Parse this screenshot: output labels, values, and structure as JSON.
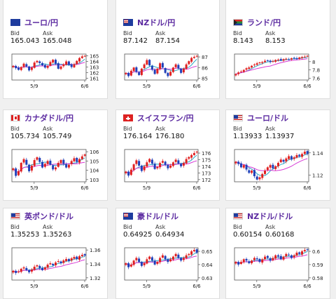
{
  "colors": {
    "title": "#5b2aa0",
    "up": "#e02020",
    "down": "#1f3fb8",
    "ma1": "#2fa7c4",
    "ma2": "#d63ad6"
  },
  "labels": {
    "bid": "Bid",
    "ask": "Ask"
  },
  "cards": [
    {
      "pair": "ユーロ/円",
      "flag": "eu-flag",
      "bid": "165.043",
      "ask": "165.048",
      "chart": {
        "type": "candlestick",
        "yticks": [
          "165",
          "164",
          "163",
          "162",
          "161"
        ],
        "xticks": [
          "5/9",
          "6/6"
        ],
        "closes": [
          163.2,
          162.8,
          162.5,
          163.0,
          163.6,
          163.1,
          162.4,
          162.9,
          163.8,
          164.1,
          163.7,
          163.3,
          162.9,
          163.2,
          163.9,
          164.3,
          163.6,
          162.7,
          163.1,
          163.5,
          164.0,
          163.4,
          163.0,
          163.5,
          164.1,
          164.6,
          164.9,
          165.0
        ]
      }
    },
    {
      "pair": "NZドル/円",
      "flag": "nz-flag",
      "bid": "87.142",
      "ask": "87.154",
      "chart": {
        "type": "candlestick",
        "yticks": [
          "87",
          "86",
          "85"
        ],
        "xticks": [
          "5/9",
          "6/6"
        ],
        "closes": [
          85.5,
          85.2,
          85.7,
          86.0,
          85.6,
          85.3,
          85.9,
          86.3,
          86.7,
          86.2,
          85.8,
          85.4,
          85.9,
          86.4,
          86.0,
          85.5,
          85.2,
          85.6,
          86.0,
          86.3,
          85.9,
          85.5,
          85.9,
          86.3,
          86.6,
          86.9,
          87.0,
          87.1
        ]
      }
    },
    {
      "pair": "ランド/円",
      "flag": "za-flag",
      "bid": "8.143",
      "ask": "8.153",
      "chart": {
        "type": "candlestick",
        "yticks": [
          "8",
          "7.8",
          "7.6"
        ],
        "xticks": [
          "5/9",
          "6/6"
        ],
        "closes": [
          7.7,
          7.74,
          7.76,
          7.8,
          7.84,
          7.86,
          7.9,
          7.93,
          7.96,
          7.98,
          7.99,
          8.02,
          8.03,
          7.99,
          8.01,
          8.04,
          8.05,
          8.03,
          8.06,
          8.07,
          8.05,
          8.08,
          8.09,
          8.06,
          8.1,
          8.11,
          8.12,
          8.14
        ]
      }
    },
    {
      "pair": "カナダドル/円",
      "flag": "ca-flag",
      "bid": "105.734",
      "ask": "105.749",
      "chart": {
        "type": "candlestick",
        "yticks": [
          "106",
          "105",
          "104",
          "103"
        ],
        "xticks": [
          "5/9",
          "6/6"
        ],
        "closes": [
          104.2,
          103.4,
          103.9,
          104.8,
          105.2,
          104.6,
          103.9,
          104.5,
          105.1,
          105.4,
          104.9,
          104.3,
          104.7,
          105.0,
          104.6,
          104.1,
          104.3,
          104.8,
          105.1,
          104.7,
          104.3,
          104.6,
          105.0,
          105.3,
          104.9,
          105.2,
          105.5,
          105.7
        ]
      }
    },
    {
      "pair": "スイスフラン/円",
      "flag": "ch-flag",
      "bid": "176.164",
      "ask": "176.180",
      "chart": {
        "type": "candlestick",
        "yticks": [
          "176",
          "175",
          "174",
          "173",
          "172"
        ],
        "xticks": [
          "5/9",
          "6/6"
        ],
        "closes": [
          173.2,
          172.6,
          173.5,
          174.3,
          174.9,
          174.1,
          173.3,
          174.0,
          174.6,
          175.1,
          174.4,
          173.6,
          173.9,
          174.5,
          174.8,
          174.2,
          173.7,
          174.1,
          174.6,
          175.0,
          174.4,
          174.0,
          174.5,
          175.1,
          175.4,
          175.7,
          176.0,
          176.2
        ]
      }
    },
    {
      "pair": "ユーロ/ドル",
      "flag": "us-flag",
      "bid": "1.13933",
      "ask": "1.13937",
      "chart": {
        "type": "candlestick",
        "yticks": [
          "1.14",
          "1.12"
        ],
        "xticks": [
          "5/9",
          "6/6"
        ],
        "closes": [
          1.132,
          1.13,
          1.127,
          1.129,
          1.125,
          1.122,
          1.124,
          1.119,
          1.116,
          1.118,
          1.121,
          1.124,
          1.127,
          1.129,
          1.126,
          1.128,
          1.131,
          1.134,
          1.132,
          1.135,
          1.137,
          1.134,
          1.136,
          1.138,
          1.137,
          1.139,
          1.141,
          1.139
        ]
      }
    },
    {
      "pair": "英ポンド/ドル",
      "flag": "gb-flag",
      "bid": "1.35253",
      "ask": "1.35263",
      "chart": {
        "type": "candlestick",
        "yticks": [
          "1.36",
          "1.34",
          "1.32"
        ],
        "xticks": [
          "5/9",
          "6/6"
        ],
        "closes": [
          1.33,
          1.327,
          1.329,
          1.333,
          1.335,
          1.331,
          1.328,
          1.332,
          1.336,
          1.338,
          1.334,
          1.331,
          1.335,
          1.339,
          1.341,
          1.338,
          1.342,
          1.344,
          1.341,
          1.345,
          1.347,
          1.344,
          1.348,
          1.35,
          1.347,
          1.351,
          1.353,
          1.352
        ]
      }
    },
    {
      "pair": "豪ドル/ドル",
      "flag": "au-flag",
      "bid": "0.64925",
      "ask": "0.64934",
      "chart": {
        "type": "candlestick",
        "yticks": [
          "0.65",
          "0.64",
          "0.63"
        ],
        "xticks": [
          "5/9",
          "6/6"
        ],
        "closes": [
          0.641,
          0.638,
          0.64,
          0.643,
          0.645,
          0.642,
          0.639,
          0.641,
          0.644,
          0.646,
          0.643,
          0.64,
          0.642,
          0.645,
          0.647,
          0.644,
          0.642,
          0.644,
          0.646,
          0.648,
          0.645,
          0.643,
          0.645,
          0.647,
          0.648,
          0.65,
          0.651,
          0.649
        ]
      }
    },
    {
      "pair": "NZドル/ドル",
      "flag": "us-flag",
      "bid": "0.60154",
      "ask": "0.60168",
      "chart": {
        "type": "candlestick",
        "yticks": [
          "0.6",
          "0.59",
          "0.58"
        ],
        "xticks": [
          "5/9",
          "6/6"
        ],
        "closes": [
          0.592,
          0.59,
          0.592,
          0.594,
          0.593,
          0.591,
          0.593,
          0.595,
          0.594,
          0.592,
          0.594,
          0.596,
          0.595,
          0.593,
          0.595,
          0.597,
          0.596,
          0.594,
          0.596,
          0.598,
          0.597,
          0.595,
          0.597,
          0.599,
          0.598,
          0.6,
          0.601,
          0.601
        ]
      }
    }
  ]
}
